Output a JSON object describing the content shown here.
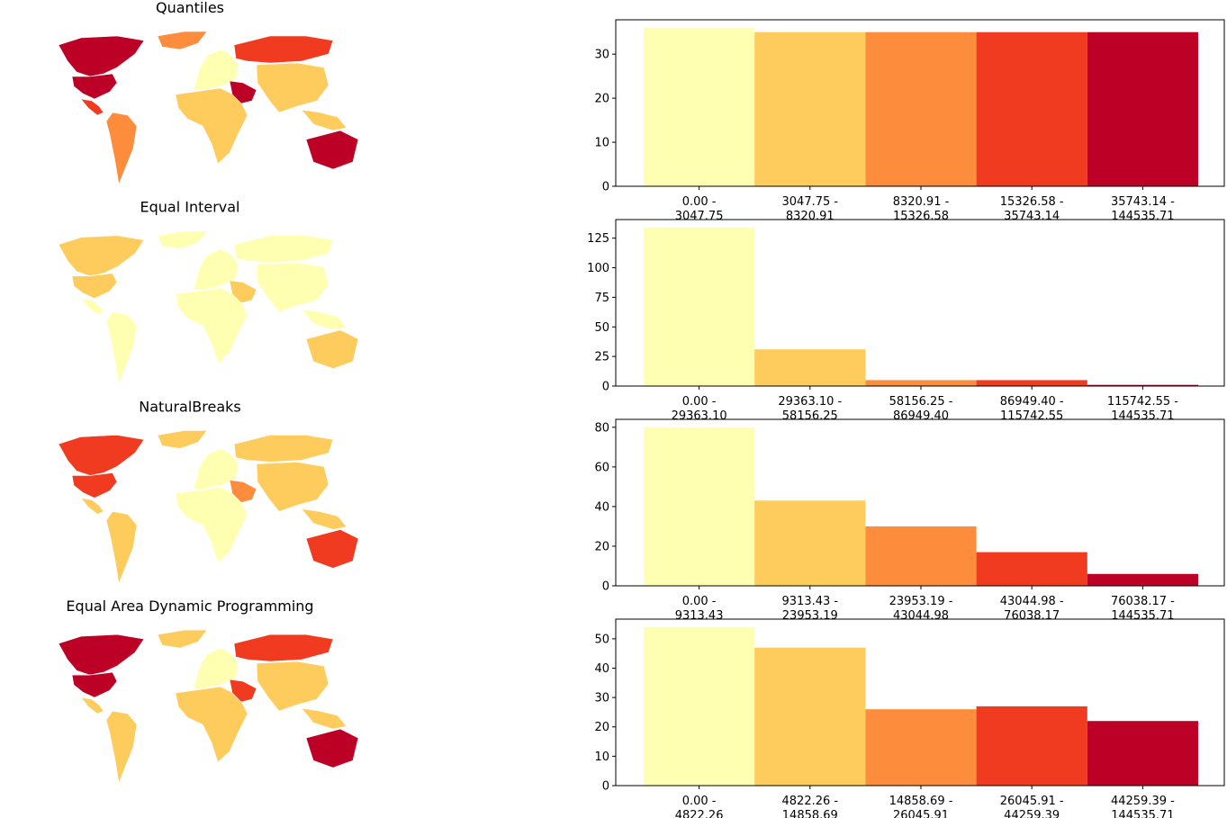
{
  "colors": [
    "#ffffb2",
    "#fecc5c",
    "#fd8d3c",
    "#f03b20",
    "#bd0026"
  ],
  "chart_data": [
    {
      "type": "bar",
      "title": "Quantiles",
      "categories": [
        "0.00 -\n3047.75",
        "3047.75 -\n8320.91",
        "8320.91 -\n15326.58",
        "15326.58 -\n35743.14",
        "35743.14 -\n144535.71"
      ],
      "values": [
        36,
        35,
        35,
        35,
        35
      ],
      "ylim": [
        0,
        37.8
      ],
      "yticks": [
        0,
        10,
        20,
        30
      ],
      "grid": false,
      "map_classes": [
        "#bd0026",
        "#bd0026",
        "#f03b20",
        "#fd8d3c",
        "#fd8d3c",
        "#fecc5c",
        "#ffffb2",
        "#bd0026",
        "#f03b20",
        "#fecc5c",
        "#bd0026",
        "#fecc5c"
      ]
    },
    {
      "type": "bar",
      "title": "Equal Interval",
      "categories": [
        "0.00 -\n29363.10",
        "29363.10 -\n58156.25",
        "58156.25 -\n86949.40",
        "86949.40 -\n115742.55",
        "115742.55 -\n144535.71"
      ],
      "values": [
        134,
        31,
        5,
        5,
        1
      ],
      "ylim": [
        0,
        140.7
      ],
      "yticks": [
        0,
        25,
        50,
        75,
        100,
        125
      ],
      "grid": false,
      "map_classes": [
        "#fecc5c",
        "#fecc5c",
        "#ffffb2",
        "#ffffb2",
        "#ffffb2",
        "#ffffb2",
        "#ffffb2",
        "#fecc5c",
        "#ffffb2",
        "#ffffb2",
        "#fecc5c",
        "#ffffb2"
      ]
    },
    {
      "type": "bar",
      "title": "NaturalBreaks",
      "categories": [
        "0.00 -\n9313.43",
        "9313.43 -\n23953.19",
        "23953.19 -\n43044.98",
        "43044.98 -\n76038.17",
        "76038.17 -\n144535.71"
      ],
      "values": [
        80,
        43,
        30,
        17,
        6
      ],
      "ylim": [
        0,
        84
      ],
      "yticks": [
        0,
        20,
        40,
        60,
        80
      ],
      "grid": false,
      "map_classes": [
        "#f03b20",
        "#f03b20",
        "#fecc5c",
        "#fecc5c",
        "#fecc5c",
        "#ffffb2",
        "#ffffb2",
        "#fd8d3c",
        "#fecc5c",
        "#fecc5c",
        "#f03b20",
        "#fecc5c"
      ]
    },
    {
      "type": "bar",
      "title": "Equal Area Dynamic Programming",
      "categories": [
        "0.00 -\n4822.26",
        "4822.26 -\n14858.69",
        "14858.69 -\n26045.91",
        "26045.91 -\n44259.39",
        "44259.39 -\n144535.71"
      ],
      "values": [
        54,
        47,
        26,
        27,
        22
      ],
      "ylim": [
        0,
        56.7
      ],
      "yticks": [
        0,
        10,
        20,
        30,
        40,
        50
      ],
      "grid": false,
      "map_classes": [
        "#bd0026",
        "#bd0026",
        "#fecc5c",
        "#fecc5c",
        "#fecc5c",
        "#fecc5c",
        "#ffffb2",
        "#f03b20",
        "#f03b20",
        "#fecc5c",
        "#bd0026",
        "#fecc5c"
      ]
    }
  ]
}
